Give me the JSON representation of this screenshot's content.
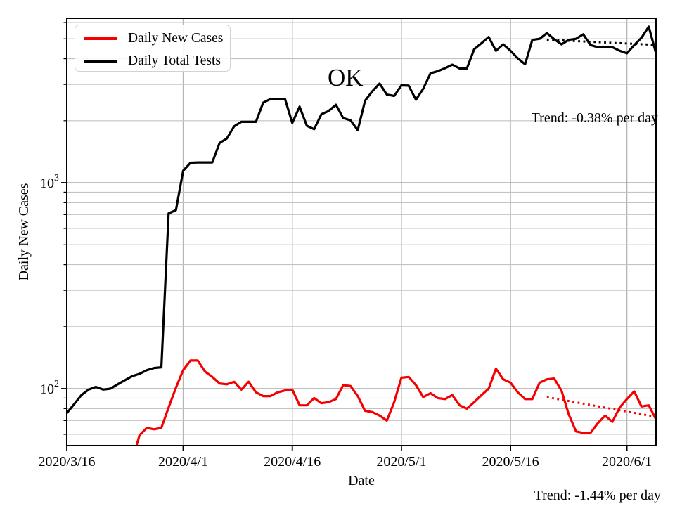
{
  "chart_data": {
    "type": "line",
    "title": "",
    "xlabel": "Date",
    "ylabel": "Daily New Cases",
    "yscale": "log",
    "ylim": [
      52.9,
      6290
    ],
    "xlim_days": [
      0,
      81
    ],
    "grid": true,
    "legend_position": "upper-left",
    "x_ticks": [
      {
        "day": 0,
        "label": "2020/3/16"
      },
      {
        "day": 16,
        "label": "2020/4/1"
      },
      {
        "day": 31,
        "label": "2020/4/16"
      },
      {
        "day": 46,
        "label": "2020/5/1"
      },
      {
        "day": 61,
        "label": "2020/5/16"
      },
      {
        "day": 77,
        "label": "2020/6/1"
      }
    ],
    "y_major_ticks": [
      {
        "value": 100,
        "base": "10",
        "exponent": "2"
      },
      {
        "value": 1000,
        "base": "10",
        "exponent": "3"
      }
    ],
    "y_minor_ticks": [
      60,
      70,
      80,
      90,
      200,
      300,
      400,
      500,
      600,
      700,
      800,
      900,
      2000,
      3000,
      4000,
      5000,
      6000
    ],
    "series": [
      {
        "name": "Daily New Cases",
        "color": "#f40000",
        "start_day": 9,
        "values": [
          45,
          59.5,
          64.5,
          63.5,
          64.5,
          81,
          101,
          123,
          137,
          137,
          121,
          114,
          106,
          105,
          108,
          99,
          108,
          96,
          92,
          92,
          96,
          98,
          99,
          83,
          83,
          90,
          85,
          86,
          89,
          104,
          103,
          92,
          78,
          77,
          74,
          70,
          86,
          113,
          114,
          104,
          91,
          95,
          90,
          89,
          93,
          83,
          80,
          86,
          93,
          100,
          125,
          111,
          107,
          96,
          89,
          89,
          107,
          111,
          112,
          98,
          75,
          62,
          61,
          61,
          68,
          74,
          69,
          81,
          89,
          97,
          82,
          83,
          71
        ]
      },
      {
        "name": "Daily Total Tests",
        "color": "#000000",
        "start_day": 0,
        "values": [
          76,
          84,
          93,
          99,
          102,
          99,
          100,
          105,
          110,
          115,
          118,
          123,
          126,
          127,
          710,
          736,
          1143,
          1250,
          1255,
          1255,
          1255,
          1560,
          1640,
          1880,
          1975,
          1975,
          1975,
          2450,
          2550,
          2550,
          2550,
          1950,
          2340,
          1890,
          1820,
          2150,
          2230,
          2390,
          2060,
          2010,
          1800,
          2500,
          2780,
          3030,
          2680,
          2640,
          2970,
          2960,
          2530,
          2860,
          3400,
          3480,
          3600,
          3740,
          3590,
          3590,
          4450,
          4760,
          5100,
          4370,
          4700,
          4370,
          4020,
          3760,
          4940,
          5000,
          5330,
          4980,
          4700,
          4940,
          5000,
          5260,
          4660,
          4550,
          4550,
          4550,
          4370,
          4250,
          4660,
          5060,
          5730,
          4250
        ]
      }
    ],
    "trend_lines": [
      {
        "series": "Daily Total Tests",
        "color": "#000000",
        "start_day": 66,
        "end_day": 81,
        "start_value": 4950,
        "end_value": 4670,
        "rate_label": "Trend: -0.38% per day"
      },
      {
        "series": "Daily New Cases",
        "color": "#f40000",
        "start_day": 66,
        "end_day": 81,
        "start_value": 91,
        "end_value": 73,
        "rate_label": "Trend: -1.44% per day"
      }
    ],
    "annotations": {
      "state_label": "OK",
      "trend_black": "Trend: -0.38% per day",
      "trend_red": "Trend: -1.44% per day"
    }
  }
}
